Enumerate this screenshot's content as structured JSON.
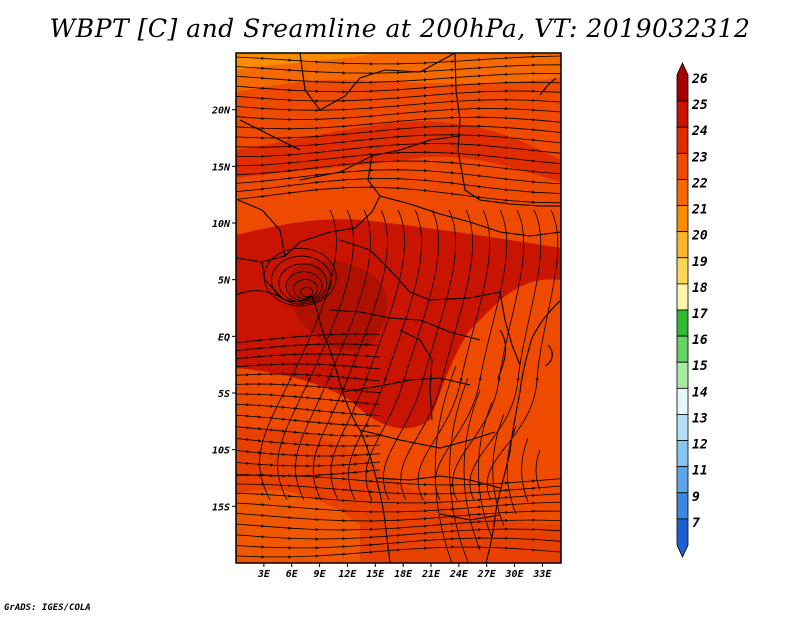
{
  "title": "WBPT [C] and Sreamline at 200hPa, VT: 2019032312",
  "credit": "GrADS: IGES/COLA",
  "map": {
    "variable": "Wet-bulb potential temperature",
    "overlay": "streamlines",
    "lon_range": [
      0,
      35
    ],
    "lat_range": [
      -20,
      25
    ],
    "lon_ticks": [
      "3E",
      "6E",
      "9E",
      "12E",
      "15E",
      "18E",
      "21E",
      "24E",
      "27E",
      "30E",
      "33E"
    ],
    "lat_ticks": [
      "20N",
      "15N",
      "10N",
      "5N",
      "EQ",
      "5S",
      "10S",
      "15S"
    ]
  },
  "colorbar": {
    "labels": [
      "26",
      "25",
      "24",
      "23",
      "22",
      "21",
      "20",
      "19",
      "18",
      "17",
      "16",
      "15",
      "14",
      "13",
      "12",
      "11",
      "9",
      "7"
    ],
    "colors": [
      "#a50000",
      "#c81400",
      "#e02d00",
      "#ee4a00",
      "#f56a00",
      "#fa8c00",
      "#fcb42d",
      "#fdd65a",
      "#fff5a8",
      "#33bb33",
      "#66d366",
      "#a8eba0",
      "#e4f8f8",
      "#b4def8",
      "#88c4f0",
      "#5ea6ea",
      "#3a86e0",
      "#1e5fd2"
    ]
  }
}
